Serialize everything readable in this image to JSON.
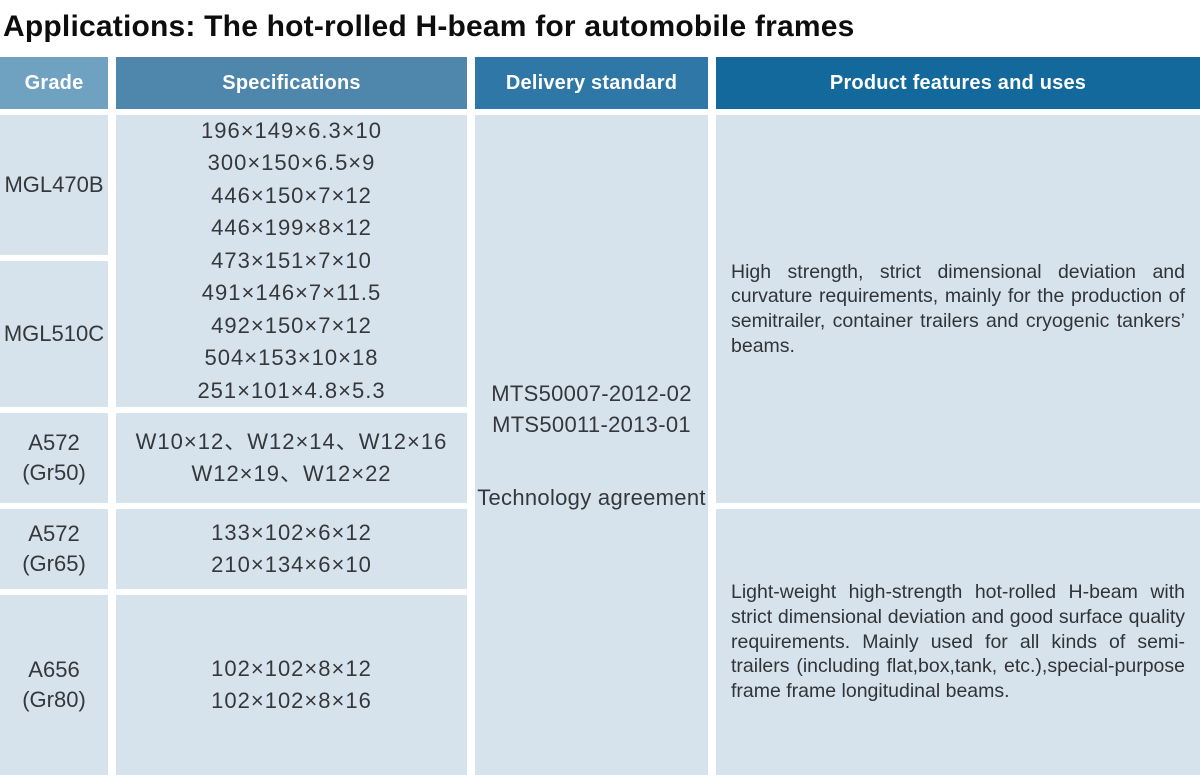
{
  "page": {
    "title": "Applications: The hot-rolled H-beam for automobile frames"
  },
  "table": {
    "headers": {
      "grade": "Grade",
      "specifications": "Specifications",
      "delivery": "Delivery standard",
      "features": "Product features and uses"
    },
    "grades": [
      {
        "lines": [
          "MGL470B"
        ]
      },
      {
        "lines": [
          "MGL510C"
        ]
      },
      {
        "lines": [
          "A572",
          "(Gr50)"
        ]
      },
      {
        "lines": [
          "A572",
          "(Gr65)"
        ]
      },
      {
        "lines": [
          "A656",
          "(Gr80)"
        ]
      }
    ],
    "spec_groups": [
      {
        "lines": [
          "196×149×6.3×10",
          "300×150×6.5×9",
          "446×150×7×12",
          "446×199×8×12",
          "473×151×7×10",
          "491×146×7×11.5",
          "492×150×7×12",
          "504×153×10×18",
          "251×101×4.8×5.3"
        ]
      },
      {
        "lines": [
          "W10×12、W12×14、W12×16",
          "W12×19、W12×22"
        ]
      },
      {
        "lines": [
          "133×102×6×12",
          "210×134×6×10"
        ]
      },
      {
        "lines": [
          "102×102×8×12",
          "102×102×8×16"
        ]
      }
    ],
    "delivery": {
      "lines": [
        "MTS50007-2012-02",
        "MTS50011-2013-01"
      ],
      "agreement": "Technology agreement"
    },
    "features": [
      "High strength, strict dimensional deviation and curvature requirements, mainly for the production of semitrailer, container trailers and cryogenic tankers’ beams.",
      "Light-weight high-strength hot-rolled H-beam with strict dimensional deviation and good surface quality requirements. Mainly used for all kinds of semi-trailers (including flat,box,tank, etc.),special-purpose frame frame longitudinal beams."
    ]
  },
  "colors": {
    "header_grade_bg": "#6FA1C1",
    "header_specifications_bg": "#4F87AC",
    "header_delivery_bg": "#2E77A6",
    "header_features_bg": "#14699C",
    "header_text": "#FFFFFF",
    "cell_bg": "#D7E3EC",
    "body_text": "#34383D",
    "title_text": "#0D0D0D"
  }
}
